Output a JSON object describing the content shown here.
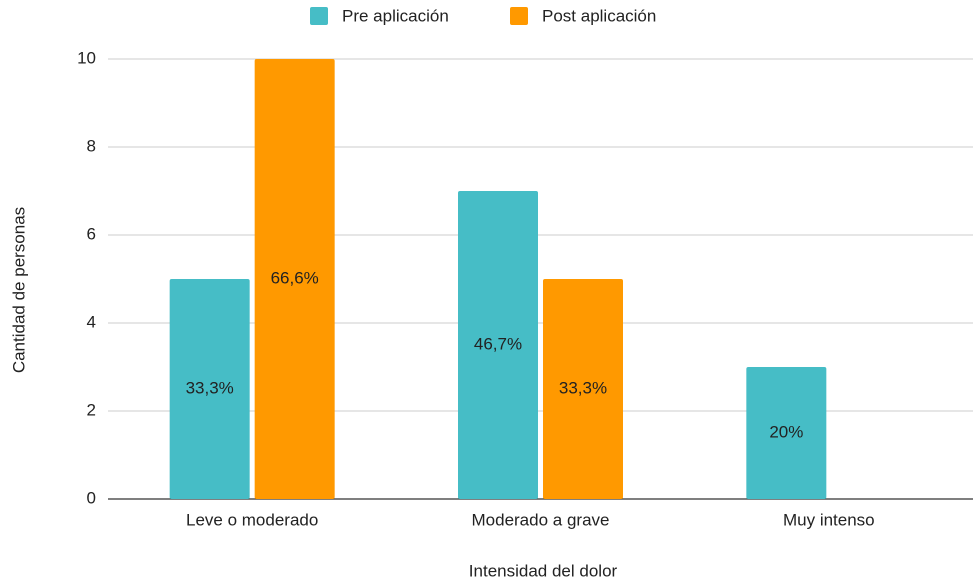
{
  "chart_data": {
    "type": "bar",
    "x_label": "Intensidad del dolor",
    "y_label": "Cantidad de personas",
    "categories": [
      "Leve o moderado",
      "Moderado a grave",
      "Muy intenso"
    ],
    "series": [
      {
        "name": "Pre aplicación",
        "color": "#46bdc6",
        "values": [
          5,
          7,
          3
        ],
        "percent_labels": [
          "33,3%",
          "46,7%",
          "20%"
        ]
      },
      {
        "name": "Post aplicación",
        "color": "#ff9900",
        "values": [
          10,
          5,
          0
        ],
        "percent_labels": [
          "66,6%",
          "33,3%",
          null
        ]
      }
    ],
    "ylim": [
      0,
      10
    ],
    "yticks": [
      0,
      2,
      4,
      6,
      8,
      10
    ],
    "grid": true,
    "legend": "top"
  }
}
